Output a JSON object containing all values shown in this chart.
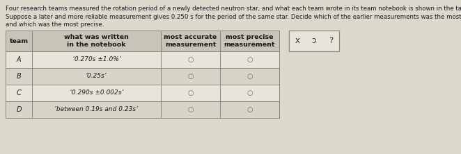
{
  "title_line1": "Four research teams measured the rotation period of a newly detected neutron star, and what each team wrote in its team notebook is shown in the table below.",
  "title_line2": "Suppose a later and more reliable measurement gives 0.250 s for the period of the same star. Decide which of the earlier measurements was the most accurate,",
  "title_line3": "and which was the most precise.",
  "col_headers_row1": [
    "team",
    "what was written",
    "most accurate",
    "most precise"
  ],
  "col_headers_row2": [
    "",
    "in the notebook",
    "measurement",
    "measurement"
  ],
  "notebook_entries": [
    "‘0.270s ±1.0%’",
    "‘0.25s’",
    "‘0.290s ±0.002s’",
    "‘between 0.19s and 0.23s’"
  ],
  "teams": [
    "A",
    "B",
    "C",
    "D"
  ],
  "bg_color": "#ddd8cc",
  "table_bg": "#e8e4da",
  "header_bg": "#c8c4b8",
  "row_alt_bg": "#d8d4c8",
  "border_color": "#888880",
  "text_color": "#1a1a1a",
  "side_box_bg": "#e8e4da",
  "title_fontsize": 6.2,
  "header_fontsize": 6.8,
  "cell_fontsize": 7.0,
  "side_symbols": [
    "x",
    "ɔ",
    "?"
  ]
}
